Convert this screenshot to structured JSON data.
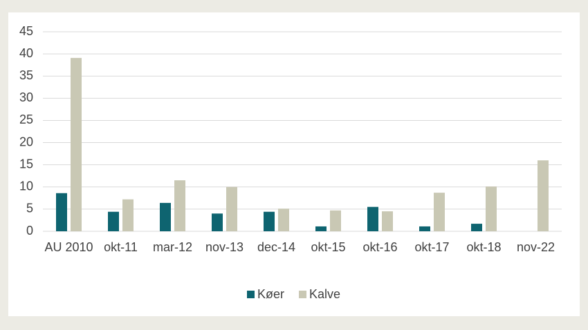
{
  "chart_data": {
    "type": "bar",
    "categories": [
      "AU 2010",
      "okt-11",
      "mar-12",
      "nov-13",
      "dec-14",
      "okt-15",
      "okt-16",
      "okt-17",
      "okt-18",
      "nov-22"
    ],
    "series": [
      {
        "name": "Køer",
        "color": "#0e6470",
        "values": [
          8.6,
          4.4,
          6.4,
          4.0,
          4.4,
          1.1,
          5.5,
          1.1,
          1.7,
          null
        ]
      },
      {
        "name": "Kalve",
        "color": "#c9c8b4",
        "values": [
          39.1,
          7.2,
          11.5,
          10.0,
          5.1,
          4.7,
          4.5,
          8.7,
          10.1,
          16.0
        ]
      }
    ],
    "ylim": [
      0,
      45
    ],
    "yticks": [
      0,
      5,
      10,
      15,
      20,
      25,
      30,
      35,
      40,
      45
    ],
    "grid": true,
    "legend": "bottom"
  }
}
